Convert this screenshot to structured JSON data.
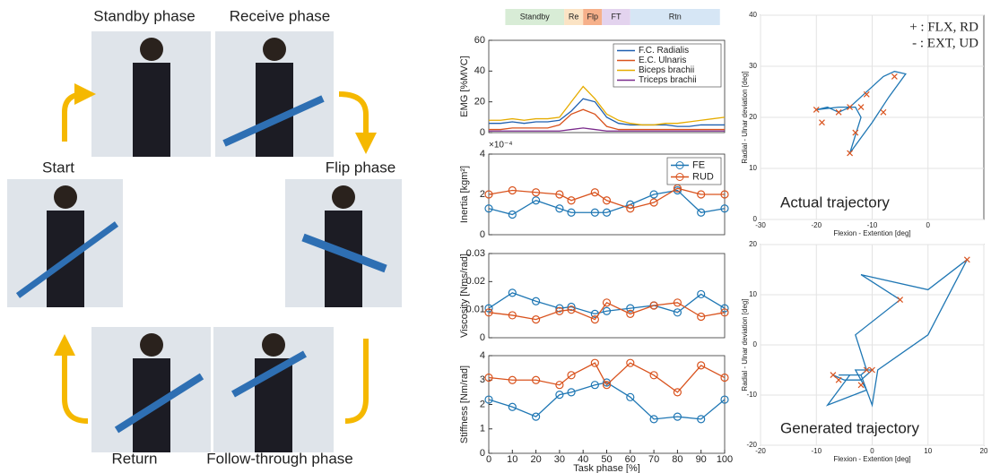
{
  "diagram": {
    "labels": [
      "Standby phase",
      "Receive phase",
      "Start",
      "Flip phase",
      "Return",
      "Follow-through phase"
    ]
  },
  "chart_data": [
    {
      "type": "line",
      "ylabel": "EMG [%MVC]",
      "xlim": [
        0,
        100
      ],
      "ylim": [
        0,
        60
      ],
      "yticks": [
        0,
        20,
        40,
        60
      ],
      "legend": "upper right",
      "phases": {
        "labels": [
          "Standby",
          "Re",
          "Flp",
          "FT",
          "Rtn"
        ],
        "colors": [
          "#d8ecd6",
          "#fbe3c4",
          "#f6b08a",
          "#e3d3ee",
          "#d6e6f5"
        ],
        "bounds": [
          7,
          32,
          40,
          48,
          60,
          98
        ]
      },
      "x": [
        0,
        5,
        10,
        15,
        20,
        25,
        30,
        35,
        40,
        45,
        50,
        55,
        60,
        65,
        70,
        75,
        80,
        85,
        90,
        95,
        100
      ],
      "series": [
        {
          "name": "F.C. Radialis",
          "color": "#1f5fb0",
          "values": [
            6,
            6,
            7,
            6,
            7,
            7,
            8,
            14,
            22,
            20,
            10,
            6,
            5,
            5,
            5,
            5,
            4,
            4,
            5,
            5,
            5
          ]
        },
        {
          "name": "E.C. Ulnaris",
          "color": "#d9531e",
          "values": [
            2,
            2,
            3,
            3,
            3,
            3,
            5,
            12,
            15,
            12,
            4,
            2,
            2,
            2,
            2,
            2,
            2,
            2,
            2,
            2,
            2
          ]
        },
        {
          "name": "Biceps brachii",
          "color": "#e6ac00",
          "values": [
            8,
            8,
            9,
            8,
            9,
            9,
            10,
            20,
            30,
            22,
            12,
            8,
            6,
            5,
            5,
            6,
            6,
            7,
            8,
            9,
            10
          ]
        },
        {
          "name": "Triceps brachii",
          "color": "#7a2a8c",
          "values": [
            1,
            1,
            1,
            1,
            1,
            1,
            1,
            2,
            3,
            2,
            1,
            1,
            1,
            1,
            1,
            1,
            1,
            1,
            1,
            1,
            1
          ]
        }
      ]
    },
    {
      "type": "line",
      "marker": "circle",
      "ylabel": "Inertia [kgm²]",
      "exponent_label": "×10⁻⁴",
      "xlim": [
        0,
        100
      ],
      "ylim": [
        0,
        4
      ],
      "yticks": [
        0,
        2,
        4
      ],
      "legend": "upper right",
      "x": [
        0,
        10,
        20,
        30,
        35,
        45,
        50,
        60,
        70,
        80,
        90,
        100
      ],
      "series": [
        {
          "name": "FE",
          "color": "#1f77b4",
          "values": [
            1.3,
            1.0,
            1.7,
            1.3,
            1.1,
            1.1,
            1.1,
            1.5,
            2.0,
            2.2,
            1.1,
            1.3
          ]
        },
        {
          "name": "RUD",
          "color": "#d9531e",
          "values": [
            2.0,
            2.2,
            2.1,
            2.0,
            1.7,
            2.1,
            1.7,
            1.3,
            1.6,
            2.3,
            2.0,
            2.0
          ]
        }
      ]
    },
    {
      "type": "line",
      "marker": "circle",
      "ylabel": "Viscosity [Nms/rad]",
      "xlim": [
        0,
        100
      ],
      "ylim": [
        0,
        0.03
      ],
      "yticks": [
        0,
        0.01,
        0.02,
        0.03
      ],
      "x": [
        0,
        10,
        20,
        30,
        35,
        45,
        50,
        60,
        70,
        80,
        90,
        100
      ],
      "series": [
        {
          "name": "FE",
          "color": "#1f77b4",
          "values": [
            0.0105,
            0.016,
            0.013,
            0.0105,
            0.011,
            0.0085,
            0.0095,
            0.0105,
            0.0115,
            0.009,
            0.0155,
            0.0105
          ]
        },
        {
          "name": "RUD",
          "color": "#d9531e",
          "values": [
            0.009,
            0.008,
            0.0065,
            0.0095,
            0.01,
            0.0065,
            0.0125,
            0.0085,
            0.0115,
            0.0125,
            0.0075,
            0.009
          ]
        }
      ]
    },
    {
      "type": "line",
      "marker": "circle",
      "ylabel": "Stiffness [Nm/rad]",
      "xlabel": "Task phase [%]",
      "xlim": [
        0,
        100
      ],
      "xticks": [
        0,
        10,
        20,
        30,
        40,
        50,
        60,
        70,
        80,
        90,
        100
      ],
      "ylim": [
        0,
        4
      ],
      "yticks": [
        0,
        1,
        2,
        3,
        4
      ],
      "x": [
        0,
        10,
        20,
        30,
        35,
        45,
        50,
        60,
        70,
        80,
        90,
        100
      ],
      "series": [
        {
          "name": "FE",
          "color": "#1f77b4",
          "values": [
            2.2,
            1.9,
            1.5,
            2.4,
            2.5,
            2.8,
            2.9,
            2.3,
            1.4,
            1.5,
            1.4,
            2.2
          ]
        },
        {
          "name": "RUD",
          "color": "#d9531e",
          "values": [
            3.1,
            3.0,
            3.0,
            2.8,
            3.2,
            3.7,
            2.8,
            3.7,
            3.2,
            2.5,
            3.6,
            3.1
          ]
        }
      ]
    },
    {
      "type": "trajectory",
      "annotation": "Actual trajectory",
      "notes": [
        "+ : FLX, RD",
        "- : EXT, UD"
      ],
      "xlabel": "Flexion - Extention [deg]",
      "ylabel": "Radial - Ulnar deviation [deg]",
      "grid": true,
      "xlim": [
        -30,
        10
      ],
      "xticks": [
        -30,
        -20,
        -10,
        0
      ],
      "ylim": [
        0,
        40
      ],
      "yticks": [
        0,
        10,
        20,
        30,
        40
      ],
      "path": {
        "color": "#1f77b4",
        "x": [
          -14,
          -12,
          -13,
          -16,
          -20,
          -18,
          -16,
          -14,
          -12,
          -10,
          -8,
          -6,
          -4,
          -5,
          -7,
          -10,
          -12,
          -14
        ],
        "y": [
          13,
          20,
          22,
          22,
          21.5,
          22,
          21,
          22,
          24,
          26,
          28,
          29,
          28.5,
          27,
          24,
          19,
          16,
          13
        ]
      },
      "markers": {
        "color": "#d9531e",
        "x": [
          -20,
          -19,
          -16,
          -14,
          -12,
          -11,
          -8,
          -6,
          -14,
          -13
        ],
        "y": [
          21.5,
          19,
          21,
          22,
          22,
          24.5,
          21,
          28,
          13,
          17
        ]
      }
    },
    {
      "type": "trajectory",
      "annotation": "Generated trajectory",
      "xlabel": "Flexion - Extention [deg]",
      "ylabel": "Radial - Ulnar deviation [deg]",
      "grid": true,
      "xlim": [
        -20,
        20
      ],
      "xticks": [
        -20,
        -10,
        0,
        10,
        20
      ],
      "ylim": [
        -20,
        20
      ],
      "yticks": [
        -20,
        -10,
        0,
        10,
        20
      ],
      "path": {
        "color": "#1f77b4",
        "x": [
          -7,
          -5,
          -2,
          0,
          -3,
          -2,
          -1,
          -8,
          -4,
          -2,
          0,
          1,
          10,
          17,
          10,
          -2,
          5,
          -3,
          -1,
          -2,
          -6
        ],
        "y": [
          -6,
          -7,
          -7,
          -5,
          -5,
          -7,
          -9,
          -12,
          -6,
          -6,
          -12,
          -5,
          2,
          17,
          11,
          14,
          9,
          2,
          -5,
          -6,
          -6
        ]
      },
      "markers": {
        "color": "#d9531e",
        "x": [
          17,
          5,
          -1,
          0,
          -2,
          -6,
          -7
        ],
        "y": [
          17,
          9,
          -5,
          -5,
          -8,
          -7,
          -6
        ]
      }
    }
  ]
}
